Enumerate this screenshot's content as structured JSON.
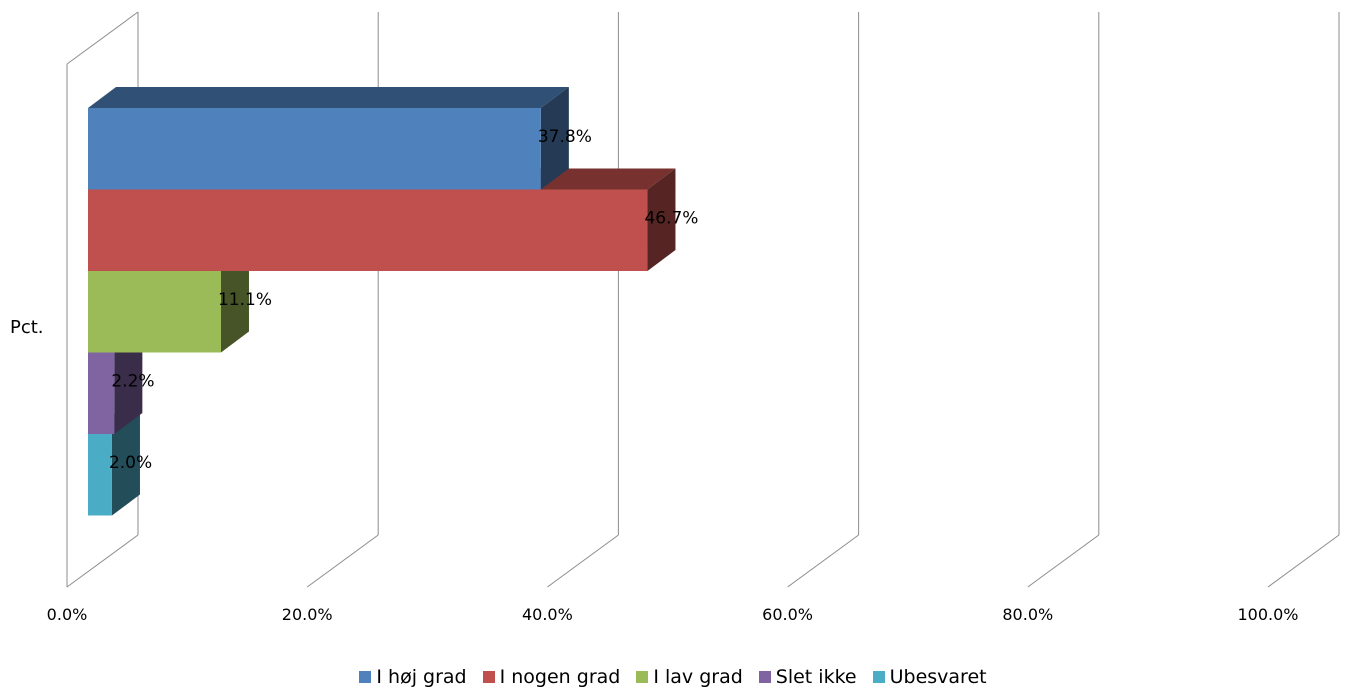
{
  "chart_data": {
    "type": "bar",
    "orientation": "horizontal",
    "three_d": true,
    "category_label": "Pct.",
    "x_tick_labels": [
      "0.0%",
      "20.0%",
      "40.0%",
      "60.0%",
      "80.0%",
      "100.0%"
    ],
    "xlim": [
      0,
      100
    ],
    "grid": true,
    "legend_position": "bottom",
    "series": [
      {
        "name": "I høj grad",
        "value": 37.8,
        "label": "37.8%",
        "color": "#4f81bd"
      },
      {
        "name": "I nogen grad",
        "value": 46.7,
        "label": "46.7%",
        "color": "#c0504d"
      },
      {
        "name": "I lav grad",
        "value": 11.1,
        "label": "11.1%",
        "color": "#9bbb59"
      },
      {
        "name": "Slet ikke",
        "value": 2.2,
        "label": "2.2%",
        "color": "#8064a2"
      },
      {
        "name": "Ubesvaret",
        "value": 2.0,
        "label": "2.0%",
        "color": "#4bacc6"
      }
    ]
  }
}
